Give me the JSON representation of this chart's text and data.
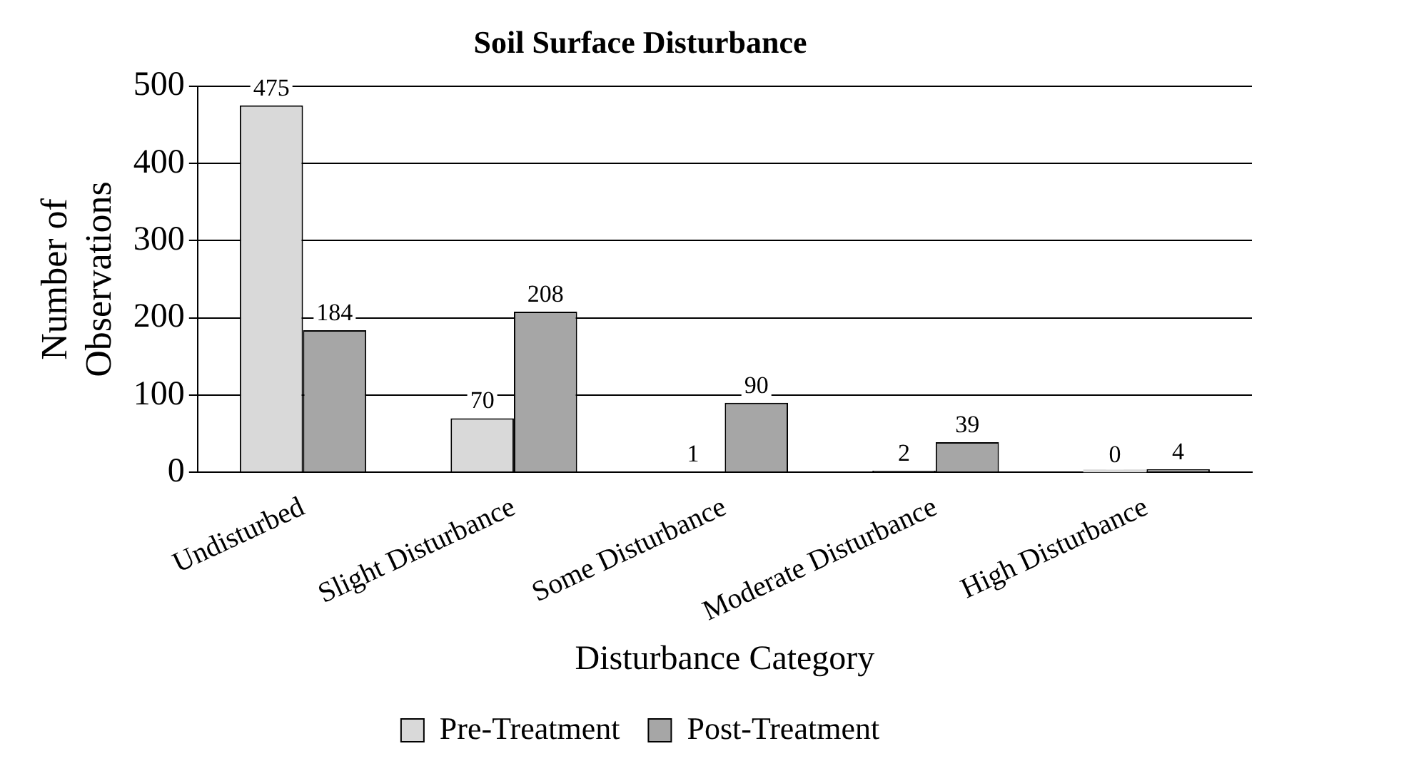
{
  "chart_data": {
    "type": "bar",
    "title": "Soil Surface Disturbance",
    "xlabel": "Disturbance Category",
    "ylabel": "Number of Observations",
    "categories": [
      "Undisturbed",
      "Slight Disturbance",
      "Some Disturbance",
      "Moderate Disturbance",
      "High Disturbance"
    ],
    "series": [
      {
        "name": "Pre-Treatment",
        "color": "#d9d9d9",
        "values": [
          475,
          70,
          1,
          2,
          0
        ]
      },
      {
        "name": "Post-Treatment",
        "color": "#a6a6a6",
        "values": [
          184,
          208,
          90,
          39,
          4
        ]
      }
    ],
    "ylim": [
      0,
      500
    ],
    "yticks": [
      0,
      100,
      200,
      300,
      400,
      500
    ],
    "grid": "y",
    "legend": "bottom",
    "data_labels": true
  }
}
